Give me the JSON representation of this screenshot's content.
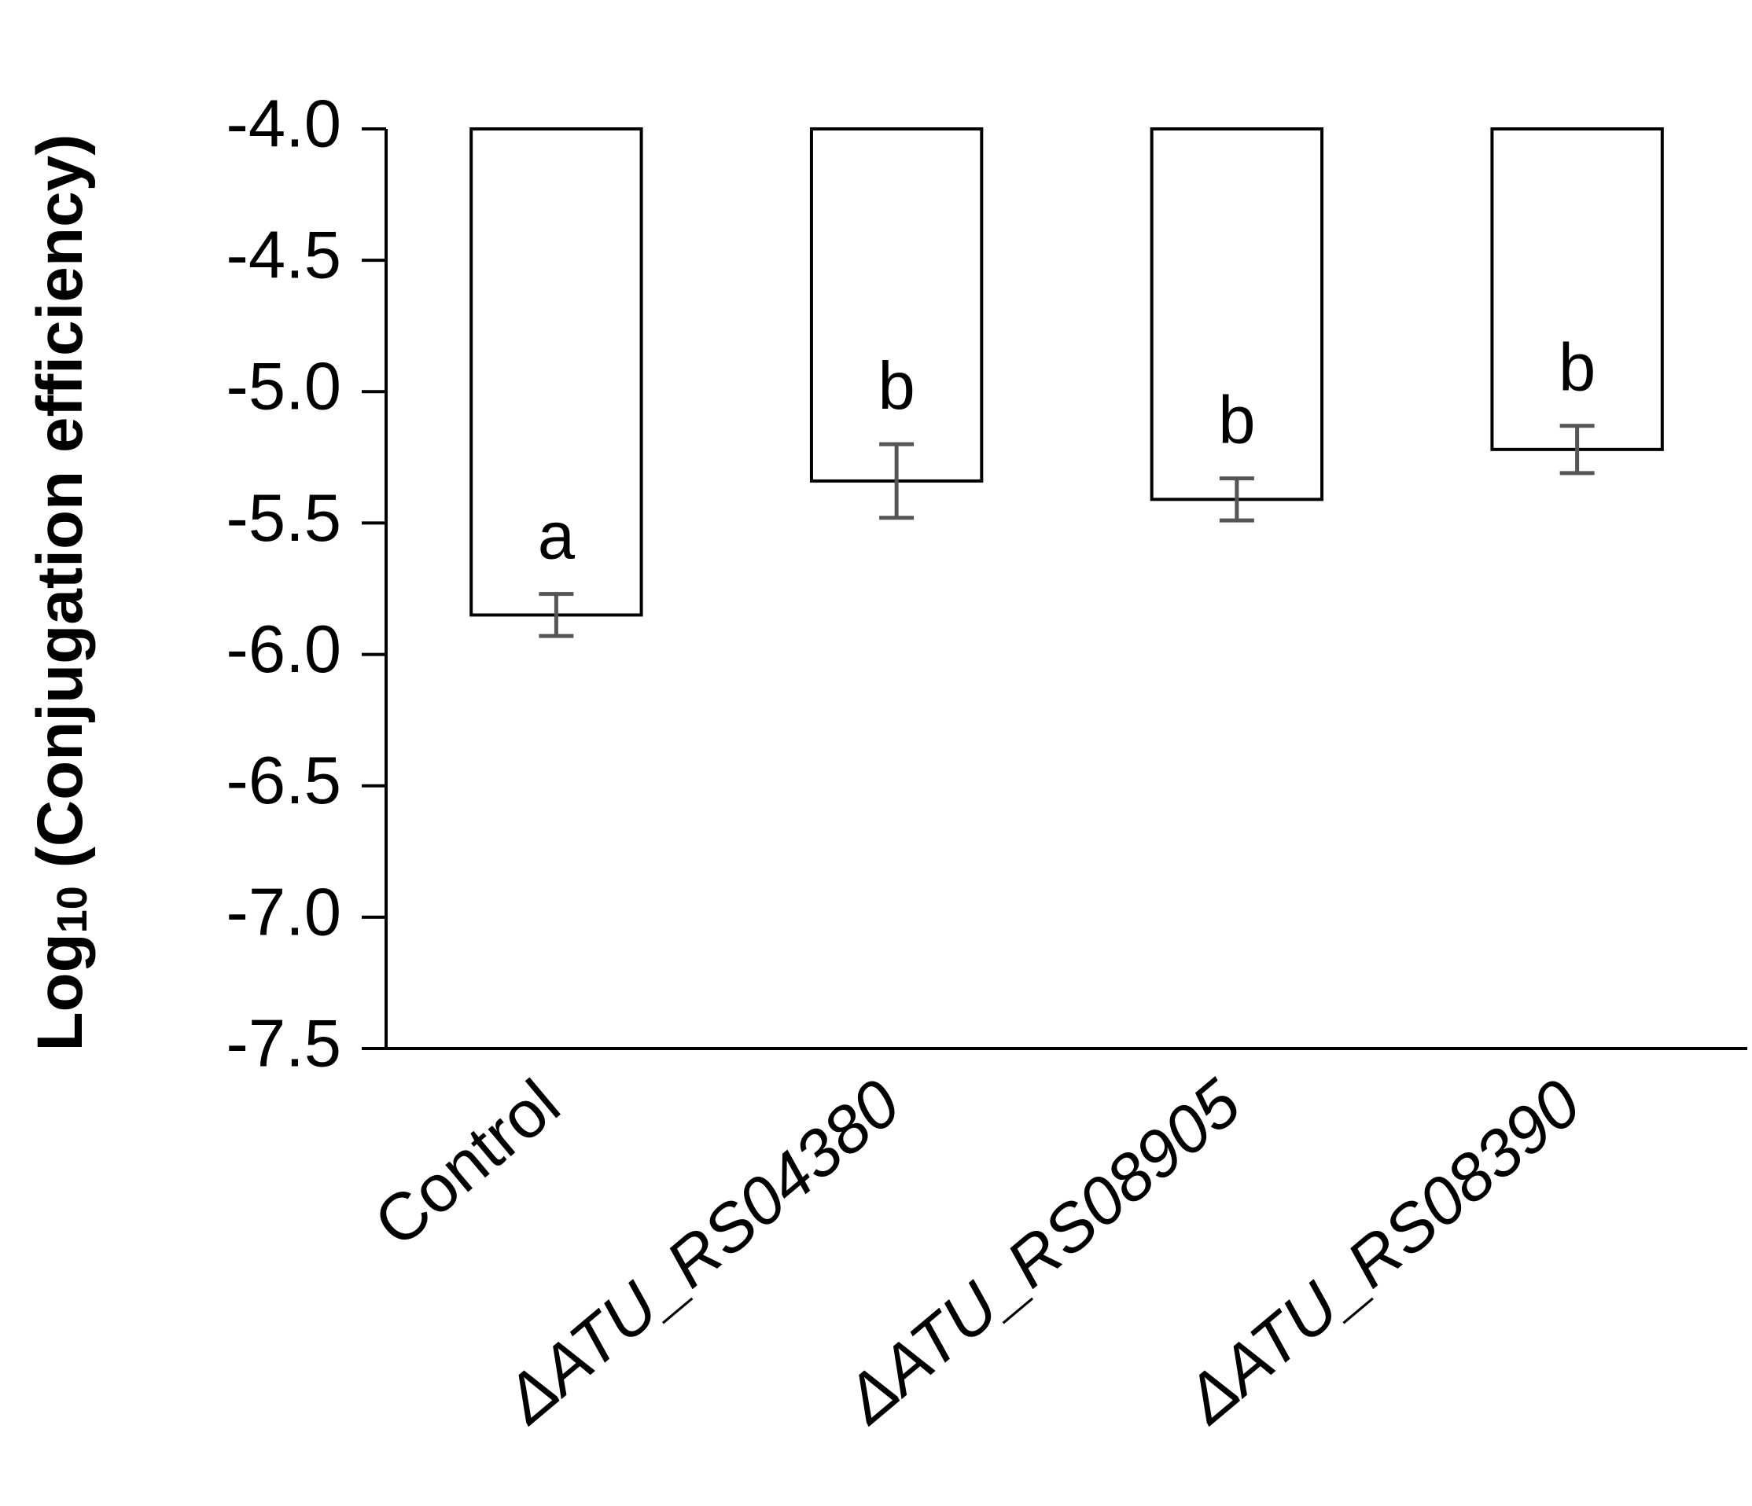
{
  "chart_data": {
    "type": "bar",
    "ylabel": [
      "Log",
      "10",
      " (Conjugation efficiency)"
    ],
    "categories": [
      "Control",
      "ΔATU_RS04380",
      "ΔATU_RS08905",
      "ΔATU_RS08390"
    ],
    "values": [
      -5.85,
      -5.34,
      -5.41,
      -5.22
    ],
    "errors": [
      0.08,
      0.14,
      0.08,
      0.09
    ],
    "annotations": [
      "a",
      "b",
      "b",
      "b"
    ],
    "color": "#ffffff",
    "ylim": [
      -7.5,
      -4.0
    ],
    "yticks": [
      {
        "value": -7.5,
        "label": "-7.5"
      },
      {
        "value": -7.0,
        "label": "-7.0"
      },
      {
        "value": -6.5,
        "label": "-6.5"
      },
      {
        "value": -6.0,
        "label": "-6.0"
      },
      {
        "value": -5.5,
        "label": "-5.5"
      },
      {
        "value": -5.0,
        "label": "-5.0"
      },
      {
        "value": -4.5,
        "label": "-4.5"
      },
      {
        "value": -4.0,
        "label": "-4.0"
      }
    ],
    "grid": false
  }
}
